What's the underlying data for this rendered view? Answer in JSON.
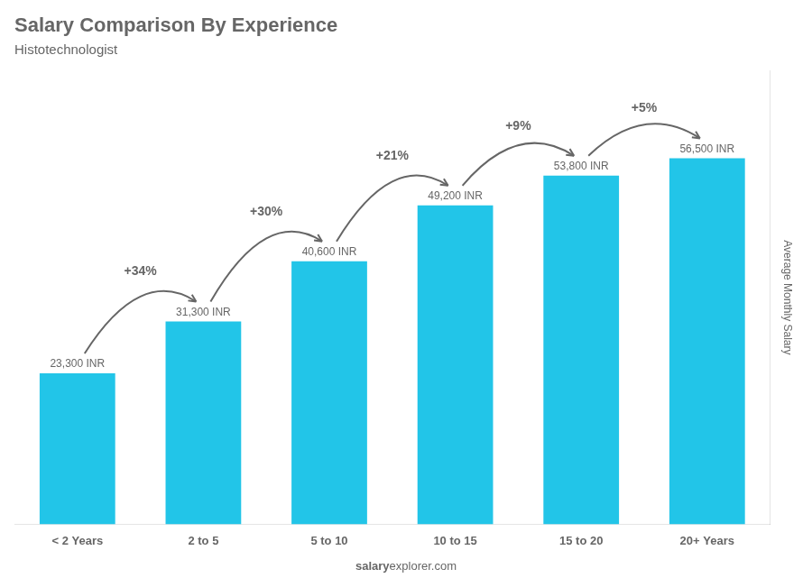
{
  "chart_data": {
    "type": "bar",
    "title": "Salary Comparison By Experience",
    "subtitle": "Histotechnologist",
    "categories": [
      "< 2 Years",
      "2 to 5",
      "5 to 10",
      "10 to 15",
      "15 to 20",
      "20+ Years"
    ],
    "values": [
      23300,
      31300,
      40600,
      49200,
      53800,
      56500
    ],
    "value_labels": [
      "23,300 INR",
      "31,300 INR",
      "40,600 INR",
      "49,200 INR",
      "53,800 INR",
      "56,500 INR"
    ],
    "data_labels": true,
    "color": "#22c5e8",
    "ylabel": "Average Monthly Salary",
    "ylim": [
      0,
      70000
    ],
    "grid": false,
    "tick_labels": "x",
    "annotations": [
      {
        "text": "+34%",
        "between": [
          "< 2 Years",
          "2 to 5"
        ]
      },
      {
        "text": "+30%",
        "between": [
          "2 to 5",
          "5 to 10"
        ]
      },
      {
        "text": "+21%",
        "between": [
          "5 to 10",
          "10 to 15"
        ]
      },
      {
        "text": "+9%",
        "between": [
          "10 to 15",
          "15 to 20"
        ]
      },
      {
        "text": "+5%",
        "between": [
          "15 to 20",
          "20+ Years"
        ]
      }
    ],
    "watermark": [
      "salary",
      "explorer.com"
    ]
  }
}
